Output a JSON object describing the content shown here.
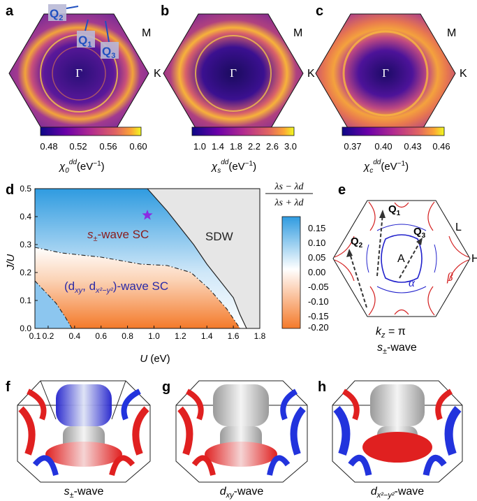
{
  "panels": {
    "a": {
      "label": "a",
      "points": {
        "m": "M",
        "k": "K",
        "gamma": "Γ"
      },
      "q_labels": {
        "q1_main": "Q",
        "q1_sub": "1",
        "q2_main": "Q",
        "q2_sub": "2",
        "q3_main": "Q",
        "q3_sub": "3"
      },
      "colorbar_ticks": [
        "0.48",
        "0.52",
        "0.56",
        "0.60"
      ],
      "colorbar_label": {
        "sym": "χ",
        "sub": "0",
        "sup": "dd",
        "unit": "(eV",
        "unit_exp": "−1",
        "unit_end": ")"
      }
    },
    "b": {
      "label": "b",
      "points": {
        "m": "M",
        "k": "K",
        "gamma": "Γ"
      },
      "colorbar_ticks": [
        "1.0",
        "1.4",
        "1.8",
        "2.2",
        "2.6",
        "3.0"
      ],
      "colorbar_label": {
        "sym": "χ",
        "sub": "s",
        "sup": "dd",
        "unit": "(eV",
        "unit_exp": "−1",
        "unit_end": ")"
      }
    },
    "c": {
      "label": "c",
      "points": {
        "m": "M",
        "k": "K",
        "gamma": "Γ"
      },
      "colorbar_ticks": [
        "0.37",
        "0.40",
        "0.43",
        "0.46"
      ],
      "colorbar_label": {
        "sym": "χ",
        "sub": "c",
        "sup": "dd",
        "unit": "(eV",
        "unit_exp": "−1",
        "unit_end": ")"
      }
    },
    "d": {
      "label": "d",
      "region_spm": {
        "main": "s",
        "sub": "±",
        "rest": "-wave SC"
      },
      "region_sdw": "SDW",
      "region_d": {
        "p1": "(d",
        "s1": "xy",
        "p2": ", d",
        "s2": "x²−y²",
        "p3": ")-wave SC"
      },
      "ratio_label": {
        "num": "λs − λd",
        "den": "λs + λd"
      },
      "ratio_ticks": [
        "0.15",
        "0.10",
        "0.05",
        "0.00",
        "-0.05",
        "-0.10",
        "-0.15",
        "-0.20"
      ]
    },
    "e": {
      "label": "e",
      "points": {
        "L": "L",
        "H": "H",
        "A": "A"
      },
      "q_labels": {
        "q1": "Q",
        "q1s": "1",
        "q2": "Q",
        "q2s": "2",
        "q3": "Q",
        "q3s": "3"
      },
      "bands": {
        "alpha": "α",
        "beta": "β"
      },
      "kz_label": {
        "k": "k",
        "z": "z",
        "rest": " = π"
      },
      "wave": {
        "main": "s",
        "sub": "±",
        "rest": "-wave"
      }
    },
    "f": {
      "label": "f",
      "caption": {
        "main": "s",
        "sub": "±",
        "rest": "-wave"
      }
    },
    "g": {
      "label": "g",
      "caption": {
        "main": "d",
        "sub": "xy",
        "rest": "-wave"
      }
    },
    "h": {
      "label": "h",
      "caption": {
        "main": "d",
        "sub": "x²−y²",
        "rest": "-wave"
      }
    }
  },
  "chart_data": {
    "type": "heatmap",
    "xlabel": "U (eV)",
    "ylabel": "J/U",
    "xlim": [
      0.1,
      1.8
    ],
    "ylim": [
      0.0,
      0.5
    ],
    "x_ticks": [
      "0.1",
      "0.2",
      "0.4",
      "0.6",
      "0.8",
      "1.0",
      "1.2",
      "1.4",
      "1.6",
      "1.8"
    ],
    "x_tick_values": [
      0.1,
      0.2,
      0.4,
      0.6,
      0.8,
      1.0,
      1.2,
      1.4,
      1.6,
      1.8
    ],
    "y_ticks": [
      "0.0",
      "0.1",
      "0.2",
      "0.3",
      "0.4",
      "0.5"
    ],
    "y_tick_values": [
      0.0,
      0.1,
      0.2,
      0.3,
      0.4,
      0.5
    ],
    "marker": {
      "U": 0.95,
      "J_over_U": 0.405,
      "shape": "star",
      "color": "#8a2be2"
    },
    "sdw_boundary": [
      [
        0.95,
        0.5
      ],
      [
        1.1,
        0.42
      ],
      [
        1.3,
        0.3
      ],
      [
        1.4,
        0.23
      ],
      [
        1.5,
        0.17
      ],
      [
        1.6,
        0.11
      ],
      [
        1.65,
        0.05
      ],
      [
        1.7,
        0.0
      ]
    ],
    "s_d_boundary": [
      [
        0.1,
        0.29
      ],
      [
        0.3,
        0.27
      ],
      [
        0.6,
        0.255
      ],
      [
        0.9,
        0.23
      ],
      [
        1.1,
        0.225
      ],
      [
        1.28,
        0.2
      ],
      [
        1.42,
        0.14
      ],
      [
        1.55,
        0.07
      ],
      [
        1.65,
        0.0
      ]
    ],
    "d_lower_boundary": [
      [
        0.1,
        0.17
      ],
      [
        0.18,
        0.13
      ],
      [
        0.26,
        0.09
      ],
      [
        0.33,
        0.04
      ],
      [
        0.38,
        0.0
      ]
    ],
    "colorbar_range": [
      -0.2,
      0.18
    ],
    "colors": {
      "positive": "#2f9be0",
      "zero": "#ffffff",
      "negative": "#f47a2a",
      "sdw": "#e6e6e6"
    }
  }
}
